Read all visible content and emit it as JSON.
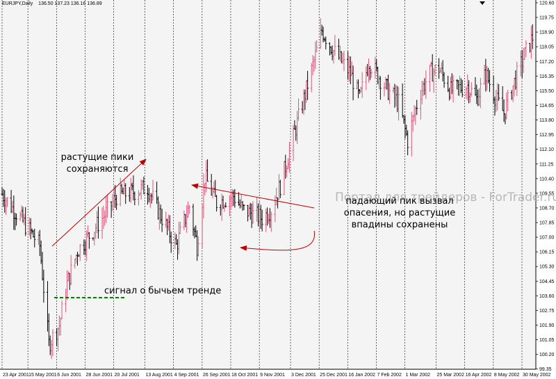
{
  "header": {
    "symbol": "EURJPY,Daily",
    "ohlc": "136.50 137.23 136.16 136.89"
  },
  "watermark": "Портал для трейдеров - ForTrader.ru",
  "annotations": {
    "peaks_line1": "растущие пики",
    "peaks_line2": "сохраняются",
    "falling_line1": "падающий пик вызвал",
    "falling_line2": "опасения, но растущие",
    "falling_line3": "впадины сохранены",
    "signal": "сигнал о бычьем тренде"
  },
  "colors": {
    "background": "#ffffff",
    "plot_background": "#f4f4f4",
    "bull_bar": "#d9577a",
    "bear_bar": "#000000",
    "grid": "#000000",
    "arrow": "#c00000",
    "signal_line": "#008000"
  },
  "chart_data": {
    "type": "ohlc",
    "instrument": "EURJPY",
    "timeframe": "Daily",
    "ylim": [
      99.5,
      120.6
    ],
    "y_ticks": [
      "120.60",
      "119.75",
      "118.90",
      "118.05",
      "117.20",
      "116.35",
      "115.50",
      "114.65",
      "113.80",
      "112.95",
      "112.10",
      "111.25",
      "110.40",
      "109.55",
      "108.70",
      "107.85",
      "107.00",
      "106.15",
      "105.30",
      "104.45",
      "103.60",
      "102.75",
      "101.90",
      "101.05",
      "100.20",
      "99.35"
    ],
    "x_labels": [
      "23 Apr 2001",
      "15 May 2001",
      "6 Jun 2001",
      "28 Jun 2001",
      "20 Jul 2001",
      "13 Aug 2001",
      "4 Sep 2001",
      "26 Sep 2001",
      "18 Oct 2001",
      "9 Nov 2001",
      "3 Dec 2001",
      "25 Dec 2001",
      "16 Jan 2002",
      "7 Feb 2002",
      "1 Mar 2002",
      "25 Mar 2002",
      "16 Apr 2002",
      "8 May 2002",
      "30 May 2002"
    ],
    "close_path": [
      [
        "23 Apr 2001",
        109.5
      ],
      [
        "1 May 2001",
        108.7
      ],
      [
        "9 May 2001",
        107.9
      ],
      [
        "15 May 2001",
        107.3
      ],
      [
        "22 May 2001",
        106.5
      ],
      [
        "29 May 2001",
        100.8
      ],
      [
        "6 Jun 2001",
        101.9
      ],
      [
        "12 Jun 2001",
        104.3
      ],
      [
        "20 Jun 2001",
        106.2
      ],
      [
        "28 Jun 2001",
        107.0
      ],
      [
        "6 Jul 2001",
        107.8
      ],
      [
        "14 Jul 2001",
        108.6
      ],
      [
        "20 Jul 2001",
        109.4
      ],
      [
        "1 Aug 2001",
        109.6
      ],
      [
        "13 Aug 2001",
        109.9
      ],
      [
        "22 Aug 2001",
        108.4
      ],
      [
        "4 Sep 2001",
        106.5
      ],
      [
        "14 Sep 2001",
        108.8
      ],
      [
        "20 Sep 2001",
        106.5
      ],
      [
        "26 Sep 2001",
        110.5
      ],
      [
        "5 Oct 2001",
        109.0
      ],
      [
        "18 Oct 2001",
        109.4
      ],
      [
        "25 Oct 2001",
        108.6
      ],
      [
        "9 Nov 2001",
        108.1
      ],
      [
        "16 Nov 2001",
        108.6
      ],
      [
        "23 Nov 2001",
        110.0
      ],
      [
        "3 Dec 2001",
        112.8
      ],
      [
        "12 Dec 2001",
        115.3
      ],
      [
        "20 Dec 2001",
        117.5
      ],
      [
        "25 Dec 2001",
        119.0
      ],
      [
        "3 Jan 2002",
        117.8
      ],
      [
        "16 Jan 2002",
        116.5
      ],
      [
        "23 Jan 2002",
        115.0
      ],
      [
        "30 Jan 2002",
        117.2
      ],
      [
        "7 Feb 2002",
        116.3
      ],
      [
        "14 Feb 2002",
        115.5
      ],
      [
        "22 Feb 2002",
        114.8
      ],
      [
        "1 Mar 2002",
        112.6
      ],
      [
        "10 Mar 2002",
        115.3
      ],
      [
        "18 Mar 2002",
        116.5
      ],
      [
        "25 Mar 2002",
        116.8
      ],
      [
        "3 Apr 2002",
        115.5
      ],
      [
        "16 Apr 2002",
        115.8
      ],
      [
        "23 Apr 2002",
        115.0
      ],
      [
        "30 Apr 2002",
        116.5
      ],
      [
        "8 May 2002",
        115.0
      ],
      [
        "14 May 2002",
        114.2
      ],
      [
        "22 May 2002",
        116.0
      ],
      [
        "30 May 2002",
        117.6
      ],
      [
        "5 Jun 2002",
        118.6
      ]
    ]
  }
}
